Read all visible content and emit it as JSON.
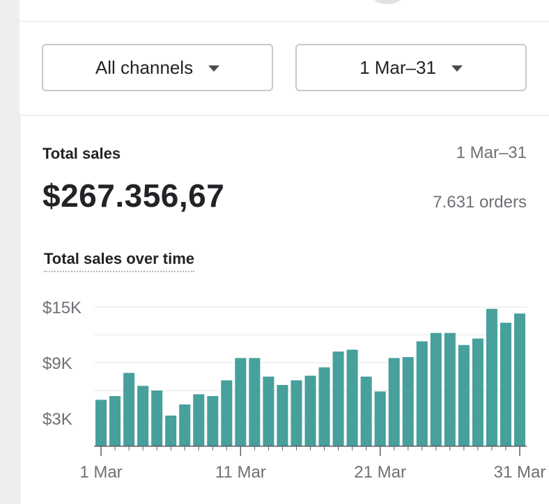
{
  "filters": {
    "channel_label": "All channels",
    "date_label": "1 Mar–31"
  },
  "summary": {
    "title": "Total sales",
    "date_range": "1 Mar–31",
    "total": "$267.356,67",
    "orders": "7.631 orders"
  },
  "colors": {
    "bar": "#47a09c",
    "grid": "#e4e5e7",
    "axis": "#5c5f62",
    "text_muted": "#6d7175"
  },
  "chart_data": {
    "type": "bar",
    "title": "Total sales over time",
    "xlabel": "",
    "ylabel": "",
    "ylim": [
      0,
      15000
    ],
    "yticks": [
      3000,
      9000,
      15000
    ],
    "ytick_labels": [
      "$3K",
      "$9K",
      "$15K"
    ],
    "gridlines": [
      3000,
      6000,
      9000,
      12000,
      15000
    ],
    "x_ticks": [
      {
        "index": 0,
        "label": "1 Mar"
      },
      {
        "index": 10,
        "label": "11 Mar"
      },
      {
        "index": 20,
        "label": "21 Mar"
      },
      {
        "index": 30,
        "label": "31 Mar"
      }
    ],
    "categories": [
      "1 Mar",
      "2 Mar",
      "3 Mar",
      "4 Mar",
      "5 Mar",
      "6 Mar",
      "7 Mar",
      "8 Mar",
      "9 Mar",
      "10 Mar",
      "11 Mar",
      "12 Mar",
      "13 Mar",
      "14 Mar",
      "15 Mar",
      "16 Mar",
      "17 Mar",
      "18 Mar",
      "19 Mar",
      "20 Mar",
      "21 Mar",
      "22 Mar",
      "23 Mar",
      "24 Mar",
      "25 Mar",
      "26 Mar",
      "27 Mar",
      "28 Mar",
      "29 Mar",
      "30 Mar",
      "31 Mar"
    ],
    "values": [
      5000,
      5400,
      7900,
      6500,
      6000,
      3300,
      4500,
      5600,
      5400,
      7100,
      9500,
      9500,
      7500,
      6600,
      7100,
      7600,
      8500,
      10200,
      10400,
      7500,
      5900,
      9500,
      9600,
      11300,
      12200,
      12200,
      10900,
      11600,
      14800,
      13300,
      14300
    ]
  }
}
